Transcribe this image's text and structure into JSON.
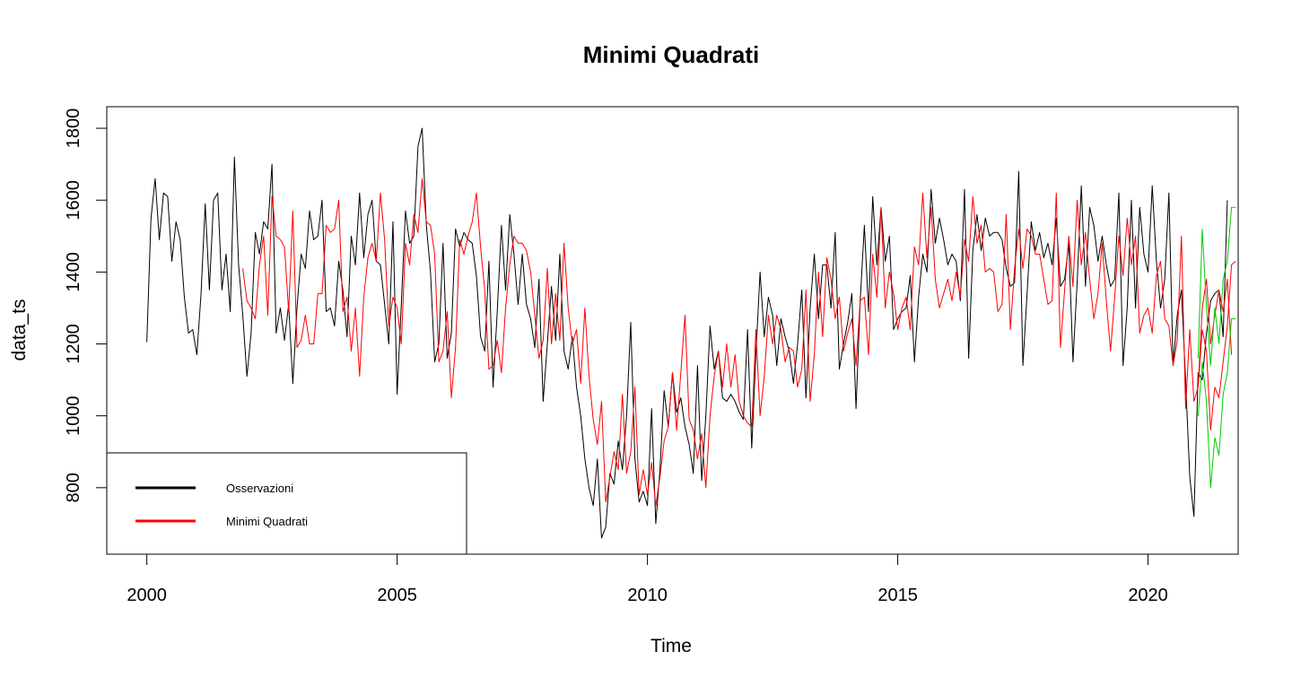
{
  "chart_data": {
    "type": "line",
    "title": "Minimi Quadrati",
    "xlabel": "Time",
    "ylabel": "data_ts",
    "xlim": [
      1999.2,
      2021.8
    ],
    "ylim": [
      615,
      1860
    ],
    "x_ticks": [
      2000,
      2005,
      2010,
      2015,
      2020
    ],
    "y_ticks": [
      800,
      1000,
      1200,
      1400,
      1600,
      1800
    ],
    "grid": false,
    "legend_position": "bottom-left",
    "legend": [
      {
        "label": "Osservazioni",
        "color": "#000000"
      },
      {
        "label": "Minimi Quadrati",
        "color": "#ff0000"
      }
    ],
    "colors": {
      "observations": "#000000",
      "fitted": "#ff0000",
      "forecast_bands": "#00cc00"
    },
    "series": [
      {
        "name": "Osservazioni",
        "color": "#000000",
        "start": 2000.0,
        "step": 0.0833333,
        "values": [
          1205,
          1550,
          1660,
          1490,
          1620,
          1610,
          1430,
          1540,
          1490,
          1330,
          1230,
          1240,
          1170,
          1340,
          1590,
          1350,
          1600,
          1620,
          1350,
          1450,
          1290,
          1720,
          1420,
          1280,
          1110,
          1230,
          1510,
          1450,
          1540,
          1520,
          1700,
          1230,
          1300,
          1210,
          1310,
          1090,
          1300,
          1450,
          1410,
          1570,
          1490,
          1500,
          1600,
          1290,
          1300,
          1250,
          1430,
          1350,
          1220,
          1500,
          1420,
          1620,
          1440,
          1560,
          1600,
          1430,
          1420,
          1310,
          1200,
          1540,
          1060,
          1310,
          1570,
          1480,
          1500,
          1750,
          1800,
          1530,
          1400,
          1150,
          1200,
          1480,
          1160,
          1230,
          1520,
          1470,
          1510,
          1490,
          1480,
          1390,
          1220,
          1180,
          1430,
          1080,
          1290,
          1530,
          1350,
          1560,
          1450,
          1310,
          1450,
          1310,
          1270,
          1190,
          1380,
          1040,
          1200,
          1360,
          1210,
          1450,
          1180,
          1130,
          1220,
          1080,
          1000,
          880,
          800,
          750,
          880,
          660,
          690,
          840,
          810,
          930,
          850,
          1000,
          1260,
          880,
          760,
          790,
          750,
          1020,
          700,
          850,
          1070,
          970,
          1120,
          1010,
          1050,
          970,
          920,
          840,
          1140,
          820,
          1000,
          1250,
          1130,
          1180,
          1050,
          1040,
          1060,
          1040,
          1010,
          990,
          1240,
          910,
          1170,
          1400,
          1220,
          1330,
          1280,
          1140,
          1270,
          1220,
          1180,
          1090,
          1200,
          1350,
          1050,
          1300,
          1450,
          1270,
          1420,
          1420,
          1300,
          1510,
          1130,
          1200,
          1260,
          1340,
          1020,
          1320,
          1530,
          1290,
          1610,
          1420,
          1580,
          1430,
          1500,
          1240,
          1270,
          1290,
          1300,
          1390,
          1150,
          1330,
          1450,
          1400,
          1630,
          1480,
          1550,
          1490,
          1420,
          1450,
          1430,
          1320,
          1630,
          1160,
          1460,
          1560,
          1460,
          1550,
          1500,
          1510,
          1510,
          1490,
          1410,
          1360,
          1370,
          1680,
          1140,
          1340,
          1540,
          1460,
          1510,
          1440,
          1480,
          1420,
          1550,
          1360,
          1380,
          1480,
          1150,
          1370,
          1640,
          1360,
          1580,
          1530,
          1430,
          1500,
          1420,
          1360,
          1380,
          1620,
          1140,
          1300,
          1600,
          1300,
          1580,
          1450,
          1400,
          1640,
          1430,
          1300,
          1380,
          1620,
          1140,
          1280,
          1350,
          1100,
          830,
          720,
          1120,
          1100,
          1230,
          1320,
          1340,
          1350,
          1220,
          1600
        ]
      },
      {
        "name": "Minimi Quadrati",
        "color": "#ff0000",
        "start": 2001.9167,
        "step": 0.0833333,
        "values": [
          1410,
          1320,
          1300,
          1270,
          1420,
          1500,
          1280,
          1610,
          1500,
          1490,
          1470,
          1290,
          1570,
          1190,
          1210,
          1280,
          1200,
          1200,
          1340,
          1340,
          1530,
          1510,
          1520,
          1600,
          1290,
          1330,
          1180,
          1300,
          1110,
          1330,
          1440,
          1480,
          1430,
          1620,
          1490,
          1250,
          1330,
          1300,
          1200,
          1480,
          1420,
          1560,
          1510,
          1660,
          1540,
          1530,
          1450,
          1150,
          1180,
          1290,
          1050,
          1190,
          1490,
          1450,
          1500,
          1540,
          1620,
          1470,
          1350,
          1130,
          1140,
          1210,
          1120,
          1300,
          1420,
          1500,
          1480,
          1480,
          1460,
          1400,
          1280,
          1160,
          1210,
          1410,
          1200,
          1340,
          1210,
          1480,
          1300,
          1200,
          1240,
          1090,
          1300,
          1110,
          990,
          920,
          1040,
          760,
          830,
          900,
          850,
          1060,
          840,
          900,
          1080,
          780,
          850,
          780,
          870,
          750,
          830,
          930,
          970,
          1120,
          960,
          1120,
          1280,
          990,
          960,
          880,
          950,
          800,
          1000,
          1110,
          1180,
          1080,
          1200,
          1080,
          1170,
          1040,
          1000,
          980,
          970,
          1240,
          1000,
          1110,
          1280,
          1200,
          1280,
          1240,
          1150,
          1190,
          1180,
          1080,
          1130,
          1350,
          1040,
          1170,
          1400,
          1220,
          1440,
          1380,
          1270,
          1330,
          1180,
          1230,
          1270,
          1140,
          1320,
          1330,
          1170,
          1450,
          1330,
          1580,
          1300,
          1400,
          1340,
          1240,
          1300,
          1330,
          1240,
          1470,
          1420,
          1620,
          1440,
          1580,
          1380,
          1300,
          1340,
          1380,
          1320,
          1400,
          1330,
          1490,
          1430,
          1610,
          1480,
          1530,
          1400,
          1410,
          1400,
          1290,
          1310,
          1560,
          1240,
          1410,
          1520,
          1410,
          1520,
          1500,
          1450,
          1450,
          1380,
          1310,
          1320,
          1620,
          1190,
          1350,
          1500,
          1360,
          1600,
          1420,
          1510,
          1380,
          1270,
          1340,
          1480,
          1320,
          1180,
          1330,
          1500,
          1390,
          1550,
          1420,
          1500,
          1230,
          1280,
          1300,
          1230,
          1390,
          1430,
          1270,
          1250,
          1140,
          1210,
          1500,
          1020,
          1240,
          1040,
          1080,
          1300,
          1380,
          1200,
          1280,
          1350,
          1290,
          1380,
          1170
        ]
      }
    ],
    "forecast": {
      "start": 2021.0,
      "step": 0.0833333,
      "upper": [
        1160,
        1520,
        1300,
        1140,
        1300,
        1200,
        1380,
        1430,
        1580,
        1580
      ],
      "mean": [
        1080,
        1240,
        1180,
        960,
        1080,
        1050,
        1150,
        1250,
        1420,
        1430
      ],
      "lower": [
        1000,
        1150,
        1040,
        800,
        940,
        890,
        1060,
        1120,
        1270,
        1270
      ]
    }
  }
}
